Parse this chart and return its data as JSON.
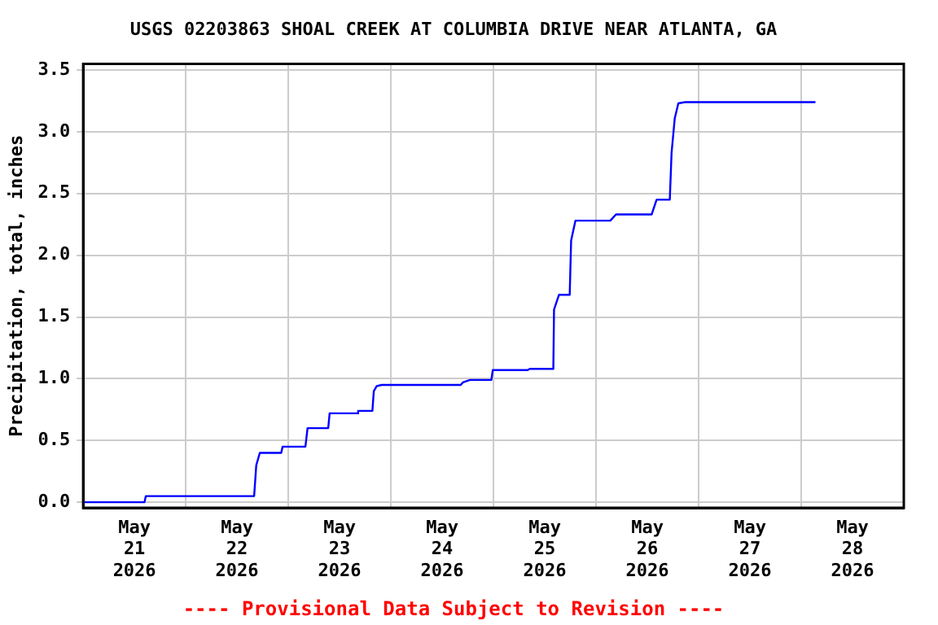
{
  "chart_data": {
    "type": "line",
    "title": "USGS 02203863 SHOAL CREEK AT COLUMBIA DRIVE NEAR ATLANTA, GA",
    "ylabel": "Precipitation, total, inches",
    "annotations": [
      "---- Provisional Data Subject to Revision ----"
    ],
    "x": [
      "2026-05-21T00:00",
      "2026-05-21T14:20",
      "2026-05-21T14:40",
      "2026-05-22T16:00",
      "2026-05-22T16:30",
      "2026-05-22T17:20",
      "2026-05-22T22:20",
      "2026-05-22T22:40",
      "2026-05-23T04:00",
      "2026-05-23T04:30",
      "2026-05-23T09:20",
      "2026-05-23T09:40",
      "2026-05-23T16:00",
      "2026-05-23T16:20",
      "2026-05-23T19:40",
      "2026-05-23T20:00",
      "2026-05-23T20:40",
      "2026-05-23T21:50",
      "2026-05-24T16:20",
      "2026-05-24T16:50",
      "2026-05-24T18:30",
      "2026-05-24T23:30",
      "2026-05-24T23:50",
      "2026-05-25T08:00",
      "2026-05-25T08:30",
      "2026-05-25T14:00",
      "2026-05-25T14:10",
      "2026-05-25T15:20",
      "2026-05-25T17:50",
      "2026-05-25T18:10",
      "2026-05-25T19:10",
      "2026-05-26T03:20",
      "2026-05-26T04:40",
      "2026-05-26T13:00",
      "2026-05-26T14:10",
      "2026-05-26T17:15",
      "2026-05-26T17:40",
      "2026-05-26T18:25",
      "2026-05-26T19:15",
      "2026-05-26T20:50",
      "2026-05-28T03:20"
    ],
    "series": [
      {
        "color": "#0000ff",
        "values": [
          0.0,
          0.0,
          0.05,
          0.05,
          0.3,
          0.4,
          0.4,
          0.45,
          0.45,
          0.6,
          0.6,
          0.72,
          0.72,
          0.74,
          0.74,
          0.9,
          0.94,
          0.95,
          0.95,
          0.97,
          0.99,
          0.99,
          1.07,
          1.07,
          1.08,
          1.08,
          1.56,
          1.68,
          1.68,
          2.12,
          2.28,
          2.28,
          2.33,
          2.33,
          2.45,
          2.45,
          2.83,
          3.11,
          3.23,
          3.24,
          3.24
        ]
      }
    ],
    "xlim": [
      "2026-05-21T00:00",
      "2026-05-29T00:00"
    ],
    "xticks": [
      {
        "value": "2026-05-21T12:00",
        "label": "May\n21\n2026"
      },
      {
        "value": "2026-05-22T00:00",
        "label": null
      },
      {
        "value": "2026-05-22T12:00",
        "label": "May\n22\n2026"
      },
      {
        "value": "2026-05-23T00:00",
        "label": null
      },
      {
        "value": "2026-05-23T12:00",
        "label": "May\n23\n2026"
      },
      {
        "value": "2026-05-24T00:00",
        "label": null
      },
      {
        "value": "2026-05-24T12:00",
        "label": "May\n24\n2026"
      },
      {
        "value": "2026-05-25T00:00",
        "label": null
      },
      {
        "value": "2026-05-25T12:00",
        "label": "May\n25\n2026"
      },
      {
        "value": "2026-05-26T00:00",
        "label": null
      },
      {
        "value": "2026-05-26T12:00",
        "label": "May\n26\n2026"
      },
      {
        "value": "2026-05-27T00:00",
        "label": null
      },
      {
        "value": "2026-05-27T12:00",
        "label": "May\n27\n2026"
      },
      {
        "value": "2026-05-28T00:00",
        "label": null
      },
      {
        "value": "2026-05-28T12:00",
        "label": "May\n28\n2026"
      }
    ],
    "ylim": [
      -0.045,
      3.55
    ],
    "yticks": [
      {
        "value": 0,
        "label": "0.0"
      },
      {
        "value": 0.5,
        "label": "0.5"
      },
      {
        "value": 1,
        "label": "1.0"
      },
      {
        "value": 1.5,
        "label": "1.5"
      },
      {
        "value": 2,
        "label": "2.0"
      },
      {
        "value": 2.5,
        "label": "2.5"
      },
      {
        "value": 3,
        "label": "3.0"
      },
      {
        "value": 3.5,
        "label": "3.5"
      }
    ],
    "grid": true,
    "line_style": "solid",
    "marker": "none"
  }
}
